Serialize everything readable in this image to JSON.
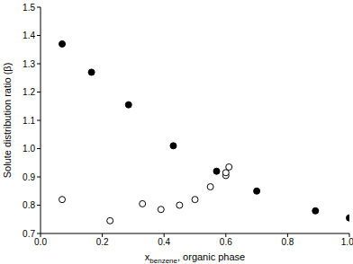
{
  "chart_data": {
    "type": "scatter",
    "x_label": "xbenzene, organic phase",
    "y_label": "Solute distribution ratio (β)",
    "xlim": [
      0,
      1
    ],
    "xticks": [
      {
        "value": 0,
        "label": "0.0"
      },
      0.2,
      0.4,
      0.6,
      0.8,
      {
        "value": 1,
        "label": "1.0"
      }
    ],
    "ylim": [
      0.7,
      1.5
    ],
    "yticks": [
      0.7,
      0.8,
      0.9,
      {
        "value": 1,
        "label": "1.0"
      },
      1.1,
      1.2,
      1.3,
      1.4,
      1.5
    ],
    "grid": false,
    "series": [
      {
        "color": "#000000",
        "marker": "filled_circle",
        "x": [
          0.07,
          0.165,
          0.285,
          0.43,
          0.57,
          0.7,
          0.89,
          1.0
        ],
        "values": [
          1.37,
          1.27,
          1.155,
          1.01,
          0.92,
          0.85,
          0.78,
          0.755
        ]
      },
      {
        "color": "#000000",
        "marker": "open_circle",
        "x": [
          0.07,
          0.225,
          0.33,
          0.39,
          0.45,
          0.5,
          0.55,
          0.6,
          0.6,
          0.61
        ],
        "values": [
          0.82,
          0.745,
          0.805,
          0.785,
          0.8,
          0.82,
          0.865,
          0.905,
          0.915,
          0.935
        ]
      }
    ]
  }
}
